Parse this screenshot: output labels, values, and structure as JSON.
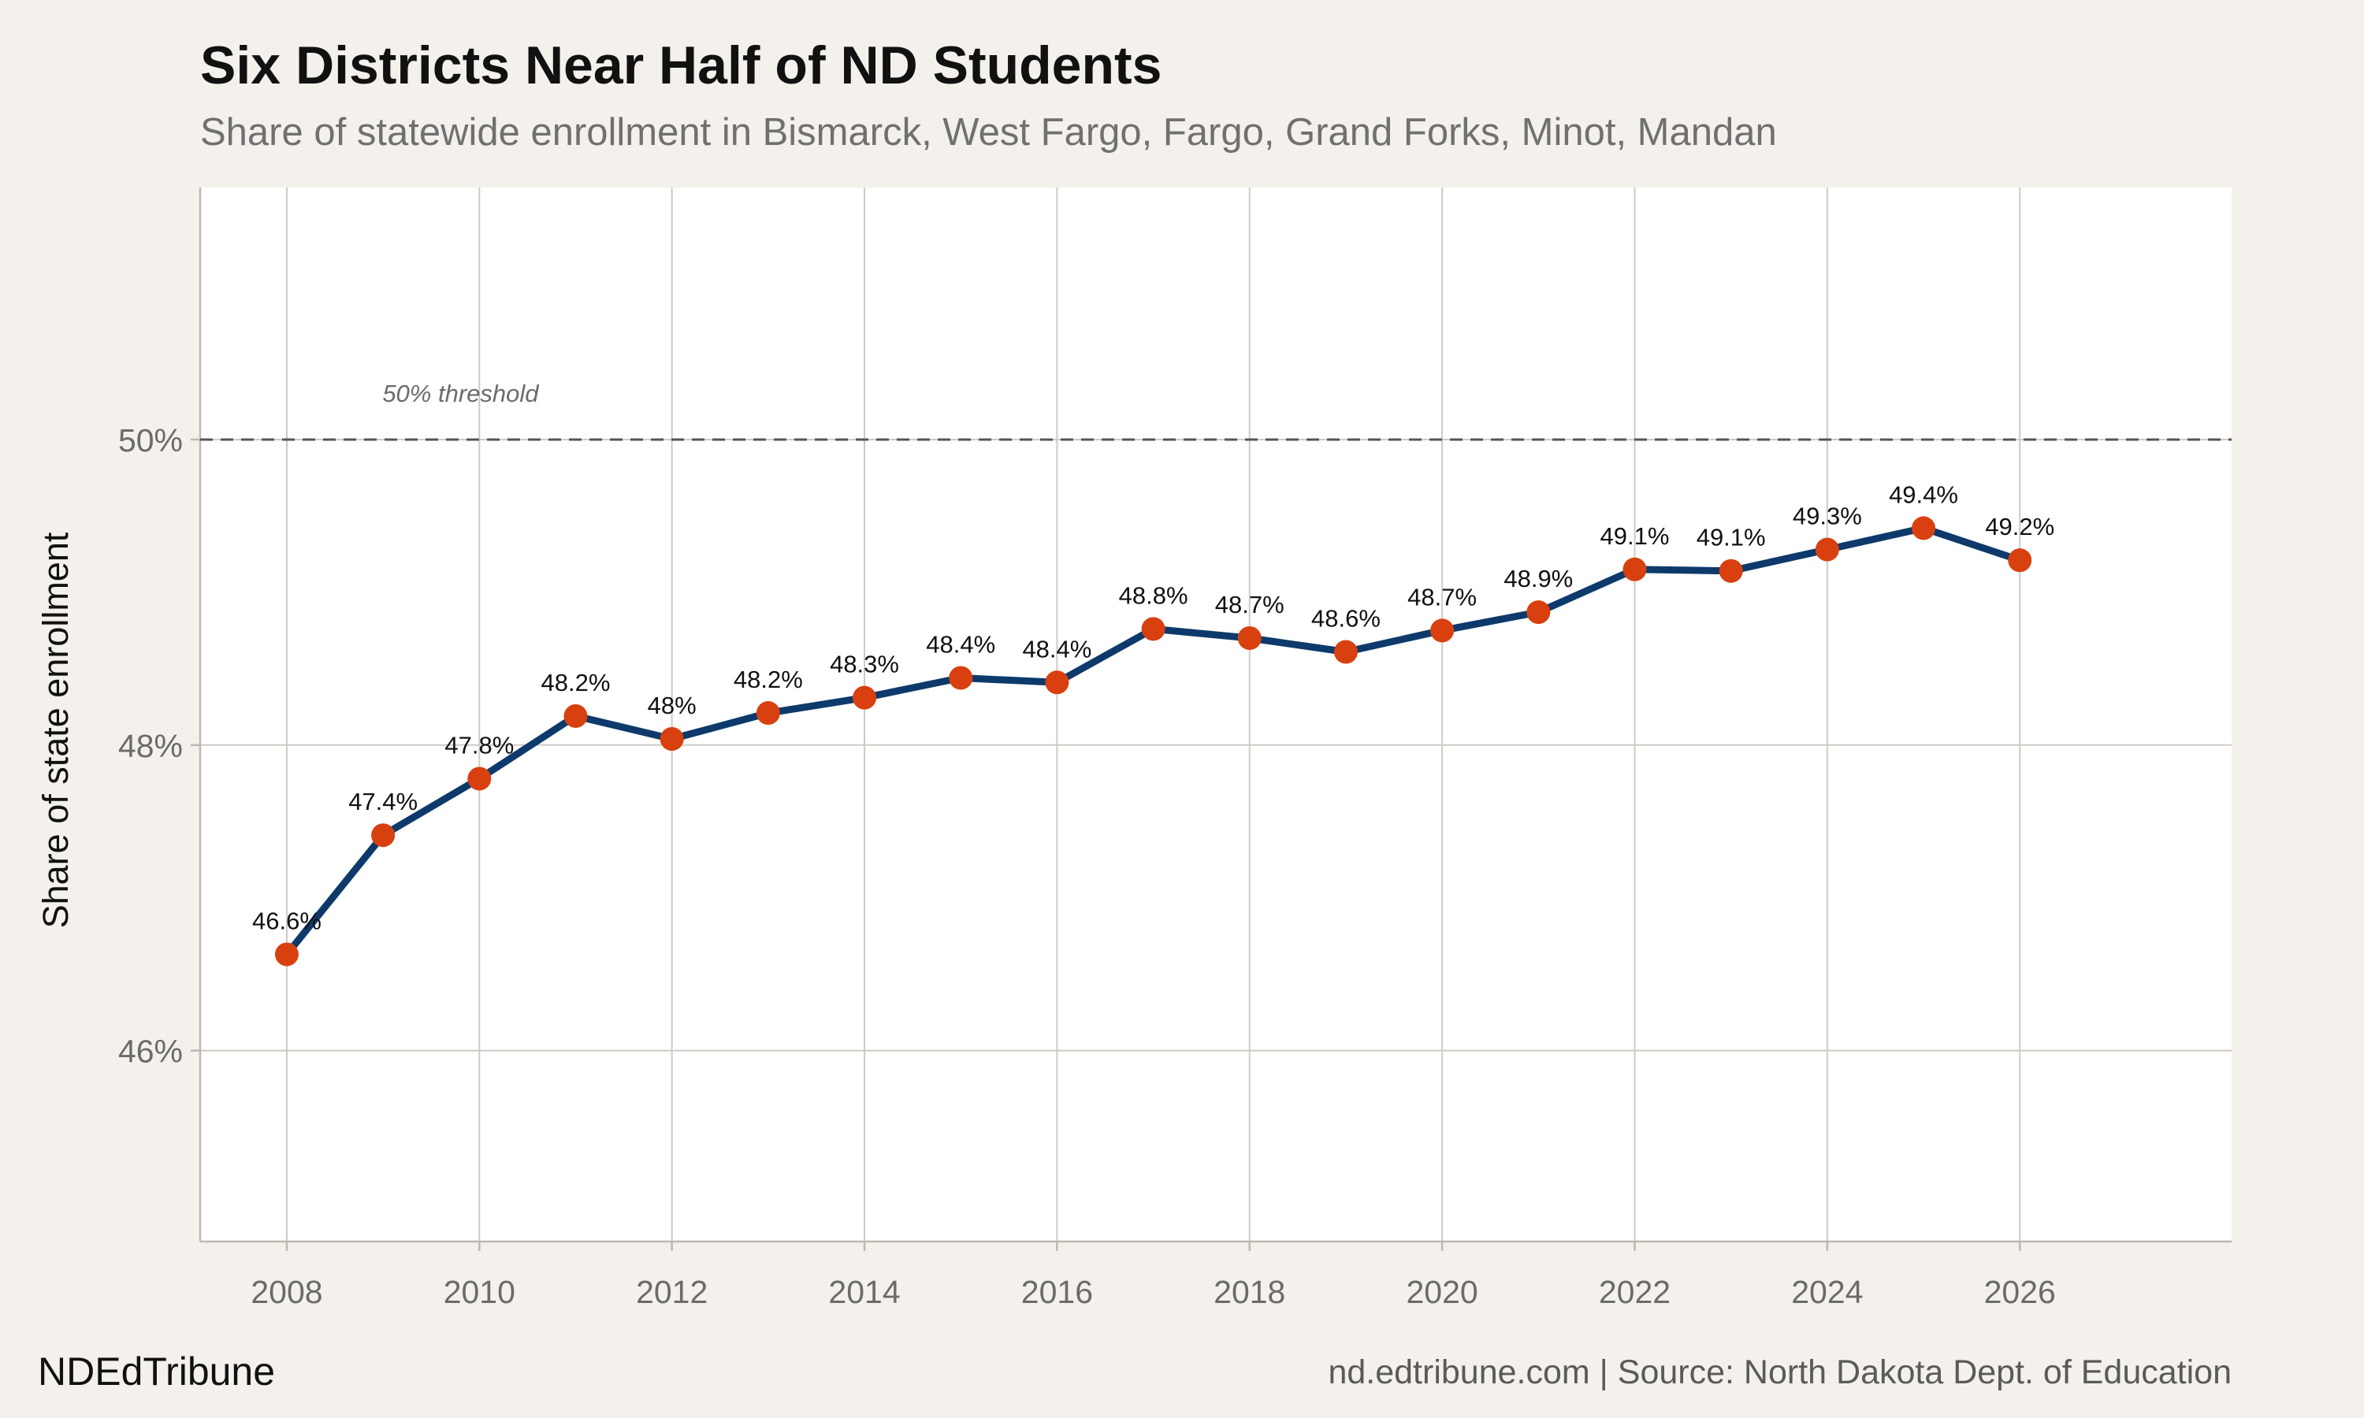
{
  "title": "Six Districts Near Half of ND Students",
  "subtitle": "Share of statewide enrollment in Bismarck, West Fargo, Fargo, Grand Forks, Minot, Mandan",
  "brand": "NDEdTribune",
  "source": "nd.edtribune.com | Source: North Dakota Dept. of Education",
  "colors": {
    "background": "#f4f1ec",
    "panel": "#ffffff",
    "line": "#0d3a6b",
    "points": "#d8400f",
    "grid": "#cfcac3",
    "reference": "#555555"
  },
  "chart_data": {
    "type": "line",
    "title": "Six Districts Near Half of ND Students",
    "subtitle": "Share of statewide enrollment in Bismarck, West Fargo, Fargo, Grand Forks, Minot, Mandan",
    "xlabel": "",
    "ylabel": "Share of state enrollment",
    "xlim": [
      2007.1,
      2028.2
    ],
    "ylim": [
      44.75,
      51.65
    ],
    "x_ticks": [
      2008,
      2010,
      2012,
      2014,
      2016,
      2018,
      2020,
      2022,
      2024,
      2026
    ],
    "x_tick_labels": [
      "2008",
      "2010",
      "2012",
      "2014",
      "2016",
      "2018",
      "2020",
      "2022",
      "2024",
      "2026"
    ],
    "y_ticks": [
      46,
      48,
      50
    ],
    "y_tick_labels": [
      "46%",
      "48%",
      "50%"
    ],
    "grid": true,
    "reference_line": {
      "y": 50,
      "label": "50% threshold",
      "label_x": 2010
    },
    "series": [
      {
        "x": [
          2008,
          2009,
          2010,
          2011,
          2012,
          2013,
          2014,
          2015,
          2016,
          2017,
          2018,
          2019,
          2020,
          2021,
          2022,
          2023,
          2024,
          2025,
          2026
        ],
        "y": [
          46.63,
          47.41,
          47.78,
          48.19,
          48.04,
          48.21,
          48.31,
          48.44,
          48.41,
          48.76,
          48.7,
          48.61,
          48.75,
          48.87,
          49.15,
          49.14,
          49.28,
          49.42,
          49.21
        ],
        "labels": [
          "46.6%",
          "47.4%",
          "47.8%",
          "48.2%",
          "48%",
          "48.2%",
          "48.3%",
          "48.4%",
          "48.4%",
          "48.8%",
          "48.7%",
          "48.6%",
          "48.7%",
          "48.9%",
          "49.1%",
          "49.1%",
          "49.3%",
          "49.4%",
          "49.2%"
        ]
      }
    ]
  }
}
